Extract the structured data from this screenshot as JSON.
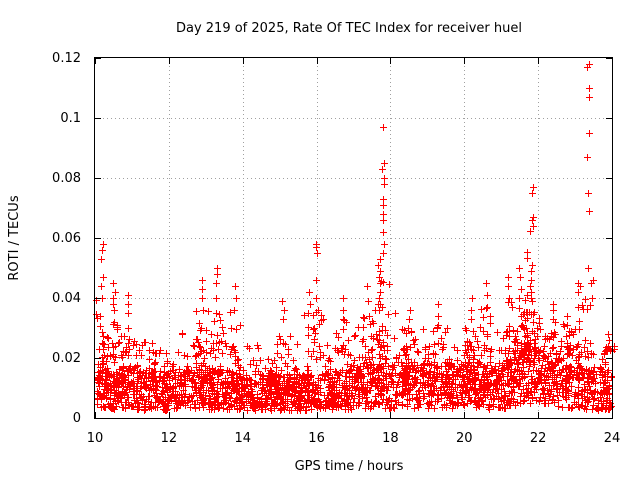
{
  "chart_data": {
    "type": "scatter",
    "title": "Day 219 of 2025, Rate Of TEC Index for receiver huel",
    "xlabel": "GPS time / hours",
    "ylabel": "ROTI / TECUs",
    "xlim": [
      10,
      24
    ],
    "ylim": [
      0,
      0.12
    ],
    "x_ticks": [
      10,
      12,
      14,
      16,
      18,
      20,
      22,
      24
    ],
    "x_tick_labels": [
      "10",
      "12",
      "14",
      "16",
      "18",
      "20",
      "22",
      "24"
    ],
    "y_ticks": [
      0,
      0.02,
      0.04,
      0.06,
      0.08,
      0.1,
      0.12
    ],
    "y_tick_labels": [
      "0",
      "0.02",
      "0.04",
      "0.06",
      "0.08",
      "0.1",
      "0.12"
    ],
    "grid": true,
    "marker": "+",
    "color": "#ff0000",
    "baseline_profile": [
      [
        10.0,
        0.012
      ],
      [
        11.0,
        0.011
      ],
      [
        12.0,
        0.011
      ],
      [
        13.0,
        0.012
      ],
      [
        14.0,
        0.01
      ],
      [
        15.0,
        0.01
      ],
      [
        16.0,
        0.01
      ],
      [
        17.0,
        0.012
      ],
      [
        18.0,
        0.013
      ],
      [
        19.0,
        0.013
      ],
      [
        20.0,
        0.013
      ],
      [
        21.0,
        0.012
      ],
      [
        21.5,
        0.018
      ],
      [
        22.0,
        0.016
      ],
      [
        23.0,
        0.012
      ],
      [
        24.0,
        0.01
      ]
    ],
    "peaks": [
      {
        "x": 10.2,
        "y": [
          0.058,
          0.056,
          0.053,
          0.047,
          0.044,
          0.04
        ]
      },
      {
        "x": 10.5,
        "y": [
          0.045,
          0.042,
          0.04,
          0.038,
          0.036,
          0.032
        ]
      },
      {
        "x": 10.9,
        "y": [
          0.041,
          0.038,
          0.035,
          0.03
        ]
      },
      {
        "x": 12.9,
        "y": [
          0.046,
          0.043,
          0.04,
          0.036
        ]
      },
      {
        "x": 13.3,
        "y": [
          0.05,
          0.048,
          0.045,
          0.04,
          0.035
        ]
      },
      {
        "x": 13.8,
        "y": [
          0.044,
          0.04,
          0.036
        ]
      },
      {
        "x": 15.1,
        "y": [
          0.039,
          0.036,
          0.033
        ]
      },
      {
        "x": 15.8,
        "y": [
          0.042,
          0.038,
          0.035
        ]
      },
      {
        "x": 16.0,
        "y": [
          0.058,
          0.057,
          0.055,
          0.046,
          0.04,
          0.036
        ]
      },
      {
        "x": 16.7,
        "y": [
          0.04,
          0.036,
          0.033
        ]
      },
      {
        "x": 17.4,
        "y": [
          0.044,
          0.039,
          0.034
        ]
      },
      {
        "x": 17.7,
        "y": [
          0.053,
          0.051,
          0.049,
          0.047,
          0.045,
          0.042,
          0.04,
          0.038,
          0.036
        ]
      },
      {
        "x": 17.8,
        "y": [
          0.097,
          0.085,
          0.083,
          0.08,
          0.078,
          0.073,
          0.071,
          0.068,
          0.066,
          0.062,
          0.058,
          0.055
        ]
      },
      {
        "x": 18.5,
        "y": [
          0.036,
          0.033,
          0.03
        ]
      },
      {
        "x": 19.3,
        "y": [
          0.038,
          0.034,
          0.031
        ]
      },
      {
        "x": 20.2,
        "y": [
          0.04,
          0.036,
          0.033
        ]
      },
      {
        "x": 20.6,
        "y": [
          0.045,
          0.041,
          0.037
        ]
      },
      {
        "x": 21.2,
        "y": [
          0.047,
          0.044,
          0.04
        ]
      },
      {
        "x": 21.5,
        "y": [
          0.05,
          0.047,
          0.043,
          0.04
        ]
      },
      {
        "x": 21.8,
        "y": [
          0.051,
          0.049,
          0.046,
          0.042
        ]
      },
      {
        "x": 21.85,
        "y": [
          0.077,
          0.075,
          0.067,
          0.066,
          0.064
        ]
      },
      {
        "x": 22.4,
        "y": [
          0.038,
          0.036,
          0.033
        ]
      },
      {
        "x": 22.8,
        "y": [
          0.034,
          0.031,
          0.029
        ]
      },
      {
        "x": 23.1,
        "y": [
          0.045,
          0.044,
          0.042
        ]
      },
      {
        "x": 23.35,
        "y": [
          0.118,
          0.117,
          0.11,
          0.107,
          0.095,
          0.087,
          0.075,
          0.069,
          0.05
        ]
      },
      {
        "x": 23.9,
        "y": [
          0.028,
          0.026,
          0.024
        ]
      }
    ]
  }
}
